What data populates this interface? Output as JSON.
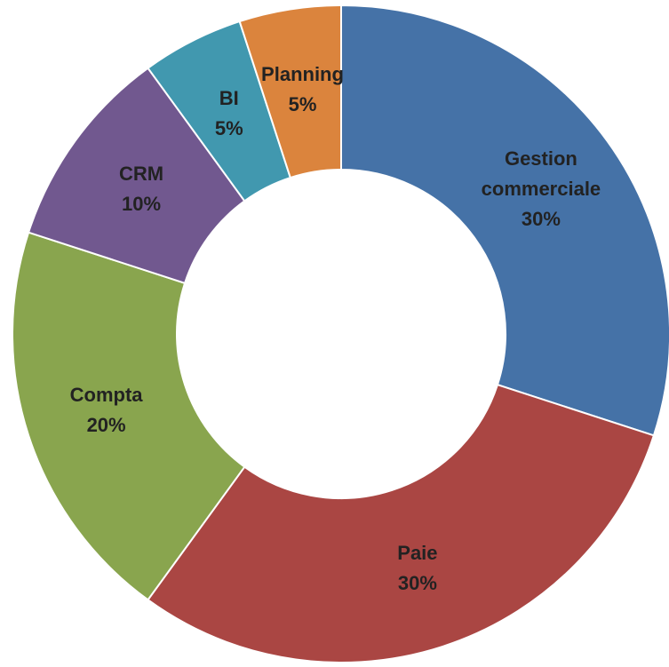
{
  "chart_data": {
    "type": "donut",
    "categories": [
      "Gestion commerciale",
      "Paie",
      "Compta",
      "CRM",
      "BI",
      "Planning"
    ],
    "values": [
      30,
      30,
      20,
      10,
      5,
      5
    ],
    "value_labels": [
      "30%",
      "30%",
      "20%",
      "10%",
      "5%",
      "5%"
    ],
    "colors": [
      "#4572a7",
      "#aa4643",
      "#89a54e",
      "#71588f",
      "#4198af",
      "#db843d"
    ]
  }
}
